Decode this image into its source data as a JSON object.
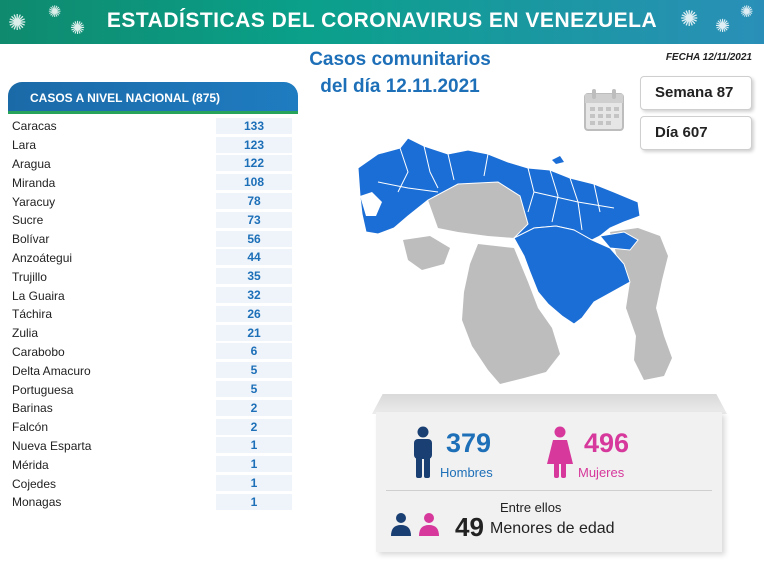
{
  "banner": {
    "title": "ESTADÍSTICAS DEL CORONAVIRUS EN VENEZUELA"
  },
  "subtitle": {
    "line1": "Casos comunitarios",
    "line2": "del día 12.11.2021"
  },
  "fecha": "FECHA 12/11/2021",
  "semana": "Semana 87",
  "dia": "Día 607",
  "national": {
    "header": "CASOS A NIVEL NACIONAL  (875)",
    "rows": [
      {
        "name": "Caracas",
        "value": "133"
      },
      {
        "name": "Lara",
        "value": "123"
      },
      {
        "name": "Aragua",
        "value": "122"
      },
      {
        "name": "Miranda",
        "value": "108"
      },
      {
        "name": "Yaracuy",
        "value": "78"
      },
      {
        "name": "Sucre",
        "value": "73"
      },
      {
        "name": "Bolívar",
        "value": "56"
      },
      {
        "name": "Anzoátegui",
        "value": "44"
      },
      {
        "name": "Trujillo",
        "value": "35"
      },
      {
        "name": "La Guaira",
        "value": "32"
      },
      {
        "name": "Táchira",
        "value": "26"
      },
      {
        "name": "Zulia",
        "value": "21"
      },
      {
        "name": "Carabobo",
        "value": "6"
      },
      {
        "name": "Delta Amacuro",
        "value": "5"
      },
      {
        "name": "Portuguesa",
        "value": "5"
      },
      {
        "name": "Barinas",
        "value": "2"
      },
      {
        "name": "Falcón",
        "value": "2"
      },
      {
        "name": "Nueva Esparta",
        "value": "1"
      },
      {
        "name": "Mérida",
        "value": "1"
      },
      {
        "name": "Cojedes",
        "value": "1"
      },
      {
        "name": "Monagas",
        "value": "1"
      }
    ]
  },
  "gender": {
    "men_count": "379",
    "men_label": "Hombres",
    "women_count": "496",
    "women_label": "Mujeres"
  },
  "minors": {
    "intro": "Entre ellos",
    "count": "49",
    "label": "Menores de edad"
  },
  "colors": {
    "men": "#1d6fb8",
    "women": "#d6389b",
    "map_active": "#1b6ed6",
    "map_inactive": "#bdbdbd"
  }
}
